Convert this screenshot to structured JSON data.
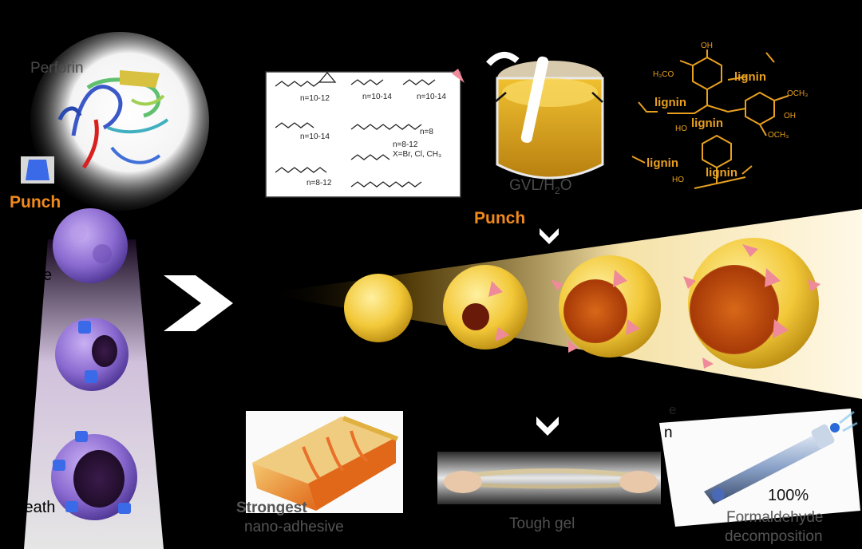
{
  "labels": {
    "perforin": "Perforin",
    "punch_left": "Punch",
    "punch_center": "Punch",
    "cell_edge": "e",
    "death": "Death",
    "solvent": "GVL/H",
    "solvent_sub": "2",
    "solvent_end": "O",
    "partial_upper": "e",
    "partial_lower": "n",
    "adhesive_1": "Strongest",
    "adhesive_2": "nano-adhesive",
    "tough_gel": "Tough gel",
    "percent": "100%",
    "formaldehyde_1": "Formaldehyde",
    "formaldehyde_2": "decomposition"
  },
  "chem": {
    "lignin": "lignin",
    "h3co": "H₃CO",
    "oh": "OH",
    "och3": "OCH₃",
    "ho": "HO",
    "n1": "n=10-12",
    "n2": "n=10-14",
    "n3": "n=10-14",
    "n4": "n=10-14",
    "n5": "n=8",
    "n6": "n=8-12",
    "x": "X=Br, Cl, CH₃",
    "n7": "n=8-12"
  },
  "colors": {
    "accent_orange": "#f08a1c",
    "lignin_gold": "#e8a020",
    "cell_purple": "#8a6ad0",
    "particle_yellow": "#f2c838",
    "anchor_pink": "#ee8a9a",
    "pore_blue": "#3a6ae8"
  }
}
